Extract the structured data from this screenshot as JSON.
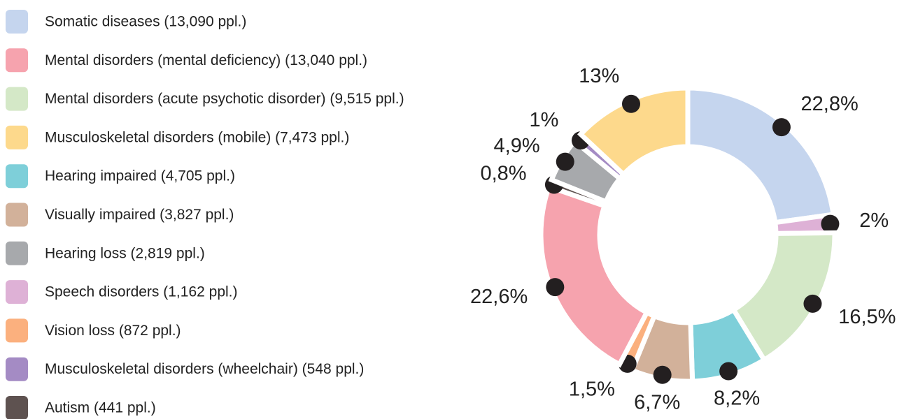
{
  "chart_data": {
    "type": "donut",
    "categories": [
      "Somatic diseases (13,090 ppl.)",
      "Speech disorders (1,162 ppl.)",
      "Mental disorders (acute psychotic disorder) (9,515 ppl.)",
      "Hearing impaired (4,705 ppl.)",
      "Visually impaired (3,827 ppl.)",
      "Vision loss (872 ppl.)",
      "Mental disorders (mental deficiency) (13,040 ppl.)",
      "Autism (441 ppl.)",
      "Hearing loss (2,819 ppl.)",
      "Musculoskeletal disorders (wheelchair) (548 ppl.)",
      "Musculoskeletal disorders (mobile) (7,473 ppl.)"
    ],
    "values": [
      22.8,
      2,
      16.5,
      8.2,
      6.7,
      1.5,
      22.6,
      0.8,
      4.9,
      1,
      13
    ],
    "value_labels": [
      "22,8%",
      "2%",
      "16,5%",
      "8,2%",
      "6,7%",
      "1,5%",
      "22,6%",
      "0,8%",
      "4,9%",
      "1%",
      "13%"
    ],
    "colors": [
      "#c5d5ee",
      "#deb1d6",
      "#d4e8c7",
      "#7ecfd9",
      "#d2b19a",
      "#fbb07e",
      "#f6a3ae",
      "#5e5250",
      "#a7a9ac",
      "#a48bc4",
      "#fdd98c"
    ],
    "legend": true
  }
}
